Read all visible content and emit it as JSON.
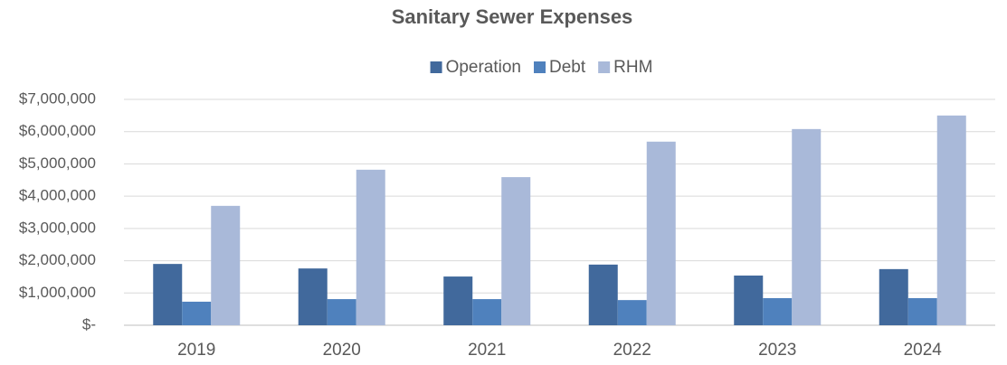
{
  "chart_data": {
    "type": "bar",
    "title": "Sanitary Sewer Expenses",
    "categories": [
      "2019",
      "2020",
      "2021",
      "2022",
      "2023",
      "2024"
    ],
    "series": [
      {
        "name": "Operation",
        "color": "#41699c",
        "values": [
          1900000,
          1760000,
          1510000,
          1880000,
          1540000,
          1740000
        ]
      },
      {
        "name": "Debt",
        "color": "#4f81bd",
        "values": [
          730000,
          810000,
          810000,
          780000,
          840000,
          840000
        ]
      },
      {
        "name": "RHM",
        "color": "#a9b9d9",
        "values": [
          3700000,
          4820000,
          4590000,
          5690000,
          6080000,
          6500000
        ]
      }
    ],
    "ylim": [
      0,
      7000000
    ],
    "yticks": [
      {
        "value": 0,
        "label": "$-"
      },
      {
        "value": 1000000,
        "label": "$1,000,000"
      },
      {
        "value": 2000000,
        "label": "$2,000,000"
      },
      {
        "value": 3000000,
        "label": "$3,000,000"
      },
      {
        "value": 4000000,
        "label": "$4,000,000"
      },
      {
        "value": 5000000,
        "label": "$5,000,000"
      },
      {
        "value": 6000000,
        "label": "$6,000,000"
      },
      {
        "value": 7000000,
        "label": "$7,000,000"
      }
    ],
    "grid": true,
    "legend": "top"
  }
}
